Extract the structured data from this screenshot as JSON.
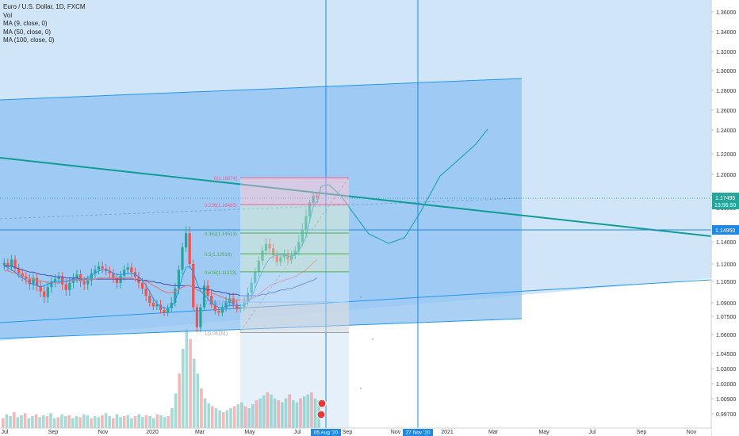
{
  "legend": {
    "symbol_line": "Euro / U.S. Dollar, 1D, FXCM",
    "vol": "Vol",
    "ma9": "MA (9, close, 0)",
    "ma50": "MA (50, close, 0)",
    "ma100": "MA (100, close, 0)"
  },
  "colors": {
    "band_fill": "#b3d4f5",
    "channel_fill": "#8ec0f0",
    "channel_line": "#2196f3",
    "teal_line": "#109c93",
    "fib_red": "#f06292",
    "fib_gray": "#a0a0a0",
    "fib_green": "#4caf50",
    "fib_blue": "#90caf9",
    "candle_up": "#26a69a",
    "candle_down": "#ef5350",
    "ma9": "#2196f3",
    "ma50": "#e57373",
    "ma100": "#3f51b5",
    "axis_text": "#333333",
    "price_tag": "#26a69a",
    "level_tag": "#1e88e5",
    "date_tag": "#1e88e5"
  },
  "chart_data": {
    "type": "candlestick",
    "symbol": "Euro / U.S. Dollar, 1D, FXCM",
    "y_ticks": [
      "1.36000",
      "1.34000",
      "1.32000",
      "1.30000",
      "1.28000",
      "1.26000",
      "1.24000",
      "1.22000",
      "1.20000",
      "1.18000",
      "1.16000",
      "1.14000",
      "1.12000",
      "1.10500",
      "1.09000",
      "1.07500",
      "1.06000",
      "1.04500",
      "1.03000",
      "1.02000",
      "1.00900",
      "0.99700"
    ],
    "x_ticks": [
      "Jul",
      "Sep",
      "Nov",
      "2020",
      "Mar",
      "May",
      "Jul",
      "Sep",
      "Nov",
      "2021",
      "Mar",
      "May",
      "Jul",
      "Sep",
      "Nov"
    ],
    "current_price": "1.17495",
    "countdown": "13:56:50",
    "marked_level": "1.14950",
    "marked_dates": [
      "05 Aug '20",
      "27 Nov '20"
    ],
    "fib_levels": [
      {
        "ratio": "0",
        "price": "1.19674",
        "label": "0(1.19674)"
      },
      {
        "ratio": "0.236",
        "price": "1.16485",
        "label": "0.236(1.16485)"
      },
      {
        "ratio": "0.382",
        "price": "1.14513",
        "label": "0.382(1.14513)"
      },
      {
        "ratio": "0.5",
        "price": "1.12918",
        "label": "0.5(1.12918)"
      },
      {
        "ratio": "0.618",
        "price": "1.11323",
        "label": "0.618(1.11323)"
      },
      {
        "ratio": "0.786",
        "price": "1.09053",
        "label": "0.786(1.09053)"
      },
      {
        "ratio": "1",
        "price": "1.06161",
        "label": "1(1.06161)"
      }
    ],
    "series_close": [
      1.121,
      1.118,
      1.124,
      1.116,
      1.112,
      1.109,
      1.107,
      1.103,
      1.108,
      1.102,
      1.098,
      1.094,
      1.101,
      1.105,
      1.107,
      1.109,
      1.103,
      1.099,
      1.104,
      1.108,
      1.111,
      1.105,
      1.103,
      1.106,
      1.112,
      1.115,
      1.118,
      1.116,
      1.114,
      1.112,
      1.108,
      1.104,
      1.11,
      1.115,
      1.117,
      1.113,
      1.109,
      1.104,
      1.1,
      1.095,
      1.09,
      1.086,
      1.088,
      1.082,
      1.079,
      1.084,
      1.09,
      1.1,
      1.115,
      1.135,
      1.145,
      1.12,
      1.085,
      1.066,
      1.085,
      1.102,
      1.095,
      1.088,
      1.081,
      1.079,
      1.084,
      1.09,
      1.093,
      1.088,
      1.083,
      1.085,
      1.091,
      1.097,
      1.104,
      1.113,
      1.123,
      1.132,
      1.138,
      1.134,
      1.128,
      1.122,
      1.126,
      1.129,
      1.124,
      1.128,
      1.132,
      1.14,
      1.147,
      1.155,
      1.168,
      1.179,
      1.176
    ],
    "ma9": [
      1.118,
      1.117,
      1.115,
      1.113,
      1.11,
      1.108,
      1.106,
      1.104,
      1.103,
      1.102,
      1.101,
      1.102,
      1.103,
      1.104,
      1.105,
      1.105,
      1.105,
      1.105,
      1.106,
      1.107,
      1.107,
      1.107,
      1.107,
      1.108,
      1.11,
      1.112,
      1.114,
      1.115,
      1.115,
      1.114,
      1.112,
      1.111,
      1.111,
      1.111,
      1.112,
      1.112,
      1.111,
      1.109,
      1.106,
      1.102,
      1.098,
      1.093,
      1.089,
      1.086,
      1.084,
      1.084,
      1.086,
      1.091,
      1.099,
      1.109,
      1.117,
      1.118,
      1.113,
      1.104,
      1.098,
      1.096,
      1.093,
      1.09,
      1.087,
      1.085,
      1.085,
      1.086,
      1.087,
      1.087,
      1.087,
      1.087,
      1.088,
      1.09,
      1.094,
      1.1,
      1.107,
      1.114,
      1.12,
      1.125,
      1.127,
      1.128,
      1.128,
      1.128,
      1.127,
      1.127,
      1.128,
      1.132,
      1.137,
      1.143,
      1.152,
      1.162,
      1.17
    ],
    "ma50": [
      1.114,
      1.114,
      1.113,
      1.112,
      1.111,
      1.11,
      1.109,
      1.108,
      1.107,
      1.106,
      1.105,
      1.105,
      1.104,
      1.104,
      1.104,
      1.104,
      1.105,
      1.105,
      1.105,
      1.106,
      1.106,
      1.106,
      1.106,
      1.107,
      1.107,
      1.107,
      1.108,
      1.108,
      1.108,
      1.108,
      1.108,
      1.108,
      1.108,
      1.108,
      1.108,
      1.108,
      1.107,
      1.107,
      1.106,
      1.105,
      1.104,
      1.102,
      1.101,
      1.099,
      1.098,
      1.097,
      1.097,
      1.098,
      1.099,
      1.101,
      1.102,
      1.102,
      1.101,
      1.099,
      1.098,
      1.097,
      1.097,
      1.097,
      1.096,
      1.095,
      1.094,
      1.093,
      1.092,
      1.092,
      1.092,
      1.092,
      1.092,
      1.092,
      1.093,
      1.094,
      1.096,
      1.098,
      1.1,
      1.102,
      1.103,
      1.104,
      1.105,
      1.106,
      1.107,
      1.108,
      1.109,
      1.111,
      1.113,
      1.115,
      1.118,
      1.121,
      1.124
    ],
    "ma100": [
      1.119,
      1.118,
      1.118,
      1.117,
      1.116,
      1.115,
      1.114,
      1.113,
      1.113,
      1.112,
      1.111,
      1.111,
      1.11,
      1.11,
      1.109,
      1.109,
      1.109,
      1.108,
      1.108,
      1.108,
      1.108,
      1.107,
      1.107,
      1.107,
      1.107,
      1.107,
      1.107,
      1.107,
      1.107,
      1.107,
      1.107,
      1.107,
      1.107,
      1.107,
      1.107,
      1.107,
      1.107,
      1.106,
      1.106,
      1.106,
      1.105,
      1.105,
      1.104,
      1.104,
      1.103,
      1.103,
      1.102,
      1.102,
      1.102,
      1.102,
      1.102,
      1.102,
      1.101,
      1.101,
      1.1,
      1.1,
      1.099,
      1.099,
      1.098,
      1.098,
      1.097,
      1.097,
      1.096,
      1.096,
      1.096,
      1.095,
      1.095,
      1.095,
      1.095,
      1.095,
      1.095,
      1.096,
      1.096,
      1.097,
      1.097,
      1.098,
      1.099,
      1.099,
      1.1,
      1.1,
      1.101,
      1.102,
      1.103,
      1.104,
      1.105,
      1.106,
      1.108
    ],
    "projection": [
      [
        1.176,
        1.19
      ],
      [
        1.185,
        1.186
      ],
      [
        1.17,
        1.16
      ],
      [
        1.15,
        1.14
      ],
      [
        1.137,
        1.137
      ],
      [
        1.142,
        1.15
      ],
      [
        1.165,
        1.178
      ],
      [
        1.19,
        1.205
      ],
      [
        1.215,
        1.228
      ],
      [
        1.238,
        1.242
      ]
    ],
    "volume": [
      0.1,
      0.14,
      0.12,
      0.16,
      0.11,
      0.13,
      0.15,
      0.1,
      0.12,
      0.14,
      0.11,
      0.13,
      0.12,
      0.15,
      0.1,
      0.11,
      0.14,
      0.12,
      0.13,
      0.1,
      0.12,
      0.11,
      0.14,
      0.13,
      0.1,
      0.12,
      0.11,
      0.13,
      0.15,
      0.12,
      0.1,
      0.14,
      0.11,
      0.12,
      0.13,
      0.1,
      0.12,
      0.14,
      0.11,
      0.13,
      0.12,
      0.1,
      0.14,
      0.13,
      0.11,
      0.12,
      0.2,
      0.35,
      0.55,
      0.8,
      1.0,
      0.9,
      0.7,
      0.55,
      0.4,
      0.3,
      0.25,
      0.22,
      0.2,
      0.18,
      0.16,
      0.18,
      0.2,
      0.22,
      0.24,
      0.26,
      0.22,
      0.2,
      0.24,
      0.28,
      0.3,
      0.33,
      0.36,
      0.34,
      0.3,
      0.28,
      0.26,
      0.3,
      0.34,
      0.28,
      0.26,
      0.3,
      0.32,
      0.34,
      0.36,
      0.3,
      0.28
    ]
  }
}
